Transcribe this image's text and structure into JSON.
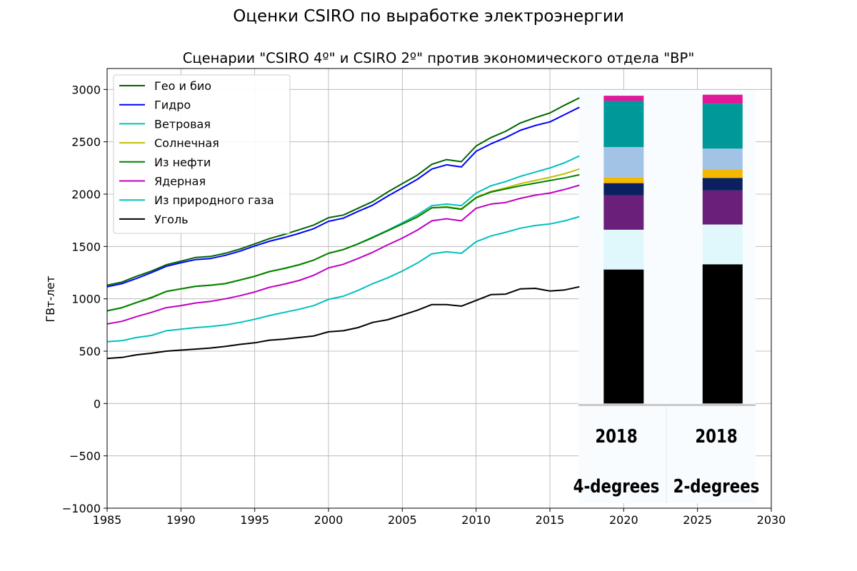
{
  "figure_title": "Оценки CSIRO по выработке электроэнергии",
  "chart_data": {
    "type": "line",
    "title": "Сценарии \"CSIRO 4º\" и CSIRO 2º\" против экономического отдела \"BP\"",
    "xlabel": "",
    "ylabel": "ГВт-лет",
    "xlim": [
      1985,
      2030
    ],
    "ylim": [
      -1000,
      3200
    ],
    "xticks": [
      1985,
      1990,
      1995,
      2000,
      2005,
      2010,
      2015,
      2020,
      2025,
      2030
    ],
    "yticks": [
      -1000,
      -500,
      0,
      500,
      1000,
      1500,
      2000,
      2500,
      3000
    ],
    "ytick_labels": [
      "−1000",
      "−500",
      "0",
      "500",
      "1000",
      "1500",
      "2000",
      "2500",
      "3000"
    ],
    "grid": true,
    "legend_position": "top-left",
    "x": [
      1985,
      1986,
      1987,
      1988,
      1989,
      1990,
      1991,
      1992,
      1993,
      1994,
      1995,
      1996,
      1997,
      1998,
      1999,
      2000,
      2001,
      2002,
      2003,
      2004,
      2005,
      2006,
      2007,
      2008,
      2009,
      2010,
      2011,
      2012,
      2013,
      2014,
      2015,
      2016,
      2017
    ],
    "series": [
      {
        "name": "Гео и био",
        "color": "#006400",
        "values": [
          1130,
          1160,
          1215,
          1265,
          1325,
          1360,
          1395,
          1405,
          1435,
          1475,
          1525,
          1575,
          1615,
          1660,
          1705,
          1775,
          1800,
          1865,
          1930,
          2020,
          2100,
          2180,
          2285,
          2330,
          2310,
          2460,
          2540,
          2600,
          2680,
          2730,
          2775,
          2850,
          2920
        ]
      },
      {
        "name": "Гидро",
        "color": "#0000ff",
        "values": [
          1115,
          1145,
          1195,
          1250,
          1310,
          1345,
          1375,
          1385,
          1415,
          1455,
          1505,
          1550,
          1585,
          1625,
          1670,
          1740,
          1770,
          1835,
          1895,
          1980,
          2060,
          2140,
          2240,
          2280,
          2260,
          2410,
          2480,
          2540,
          2610,
          2655,
          2690,
          2760,
          2830
        ]
      },
      {
        "name": "Ветровая",
        "color": "#00bfbf",
        "values": [
          885,
          915,
          965,
          1015,
          1070,
          1095,
          1120,
          1130,
          1145,
          1180,
          1215,
          1260,
          1290,
          1325,
          1370,
          1435,
          1470,
          1525,
          1590,
          1655,
          1725,
          1800,
          1890,
          1905,
          1890,
          2010,
          2080,
          2120,
          2170,
          2210,
          2250,
          2300,
          2365
        ]
      },
      {
        "name": "Солнечная",
        "color": "#bfbf00",
        "values": [
          885,
          915,
          965,
          1015,
          1070,
          1095,
          1120,
          1130,
          1145,
          1180,
          1215,
          1260,
          1290,
          1325,
          1370,
          1435,
          1470,
          1525,
          1585,
          1650,
          1715,
          1785,
          1870,
          1880,
          1860,
          1970,
          2025,
          2060,
          2100,
          2130,
          2160,
          2195,
          2240
        ]
      },
      {
        "name": "Из нефти",
        "color": "#008000",
        "values": [
          885,
          915,
          965,
          1010,
          1070,
          1095,
          1120,
          1130,
          1145,
          1180,
          1215,
          1260,
          1290,
          1325,
          1370,
          1435,
          1470,
          1525,
          1585,
          1650,
          1715,
          1780,
          1870,
          1875,
          1855,
          1965,
          2020,
          2050,
          2080,
          2105,
          2130,
          2155,
          2185
        ]
      },
      {
        "name": "Ядерная",
        "color": "#bf00bf",
        "values": [
          760,
          785,
          830,
          870,
          915,
          935,
          960,
          975,
          1000,
          1030,
          1065,
          1110,
          1140,
          1175,
          1225,
          1295,
          1330,
          1385,
          1445,
          1515,
          1580,
          1655,
          1745,
          1765,
          1745,
          1865,
          1905,
          1920,
          1960,
          1990,
          2010,
          2045,
          2085
        ]
      },
      {
        "name": "Из природного газа",
        "color": "#00bfbf",
        "values": [
          590,
          600,
          630,
          650,
          695,
          710,
          725,
          735,
          750,
          775,
          805,
          840,
          870,
          900,
          935,
          995,
          1025,
          1080,
          1145,
          1200,
          1265,
          1340,
          1430,
          1450,
          1435,
          1545,
          1600,
          1635,
          1675,
          1700,
          1715,
          1745,
          1785
        ]
      },
      {
        "name": "Уголь",
        "color": "#000000",
        "values": [
          430,
          440,
          465,
          480,
          500,
          510,
          520,
          530,
          545,
          565,
          580,
          605,
          615,
          630,
          645,
          685,
          695,
          725,
          775,
          800,
          845,
          890,
          945,
          945,
          930,
          985,
          1040,
          1045,
          1095,
          1100,
          1075,
          1085,
          1115
        ]
      }
    ],
    "overlay": {
      "bar_labels": [
        {
          "year": "2018",
          "scenario": "4-degrees"
        },
        {
          "year": "2018",
          "scenario": "2-degrees"
        }
      ],
      "bars": [
        {
          "x": 2020,
          "segments": [
            {
              "value": 1280,
              "color": "#000000"
            },
            {
              "value": 380,
              "color": "#e0f7fc"
            },
            {
              "value": 330,
              "color": "#6a1f7a"
            },
            {
              "value": 115,
              "color": "#0a2060"
            },
            {
              "value": 55,
              "color": "#f5b800"
            },
            {
              "value": 290,
              "color": "#a3c3e6"
            },
            {
              "value": 440,
              "color": "#009999"
            },
            {
              "value": 50,
              "color": "#e0189a"
            }
          ]
        },
        {
          "x": 2026.7,
          "segments": [
            {
              "value": 1330,
              "color": "#000000"
            },
            {
              "value": 380,
              "color": "#e0f7fc"
            },
            {
              "value": 325,
              "color": "#6a1f7a"
            },
            {
              "value": 120,
              "color": "#0a2060"
            },
            {
              "value": 80,
              "color": "#f5b800"
            },
            {
              "value": 200,
              "color": "#a3c3e6"
            },
            {
              "value": 430,
              "color": "#009999"
            },
            {
              "value": 85,
              "color": "#e0189a"
            }
          ]
        }
      ]
    }
  }
}
